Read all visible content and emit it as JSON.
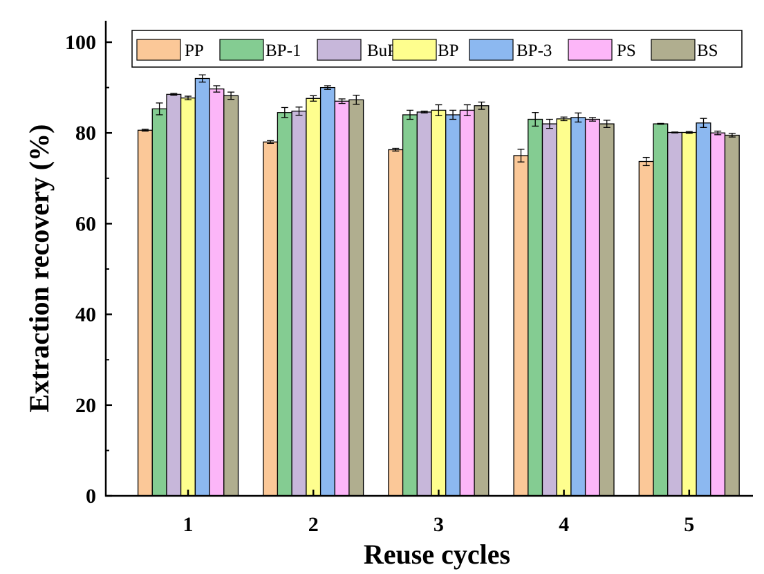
{
  "chart_data": {
    "type": "bar",
    "xlabel": "Reuse cycles",
    "ylabel": "Extraction recovery (%)",
    "ylim": [
      0,
      100
    ],
    "yticks": [
      0,
      20,
      40,
      60,
      80,
      100
    ],
    "categories": [
      "1",
      "2",
      "3",
      "4",
      "5"
    ],
    "grid": false,
    "legend_position": "top",
    "series": [
      {
        "name": "PP",
        "color": "#fbc898",
        "values": [
          80.6,
          78.0,
          76.3,
          75.0,
          73.7
        ],
        "errors": [
          0.2,
          0.3,
          0.3,
          1.4,
          0.9
        ]
      },
      {
        "name": "BP-1",
        "color": "#84cc92",
        "values": [
          85.3,
          84.5,
          84.0,
          83.0,
          82.0
        ],
        "errors": [
          1.3,
          1.1,
          1.0,
          1.5,
          0.1
        ]
      },
      {
        "name": "BuP",
        "color": "#c7b7da",
        "values": [
          88.5,
          84.8,
          84.6,
          82.0,
          80.1
        ],
        "errors": [
          0.2,
          0.9,
          0.2,
          1.0,
          0.1
        ]
      },
      {
        "name": "BP",
        "color": "#fefe8e",
        "values": [
          87.7,
          87.6,
          85.0,
          83.1,
          80.1
        ],
        "errors": [
          0.4,
          0.6,
          1.2,
          0.4,
          0.2
        ]
      },
      {
        "name": "BP-3",
        "color": "#8cb8f0",
        "values": [
          92.0,
          90.0,
          84.0,
          83.4,
          82.2
        ],
        "errors": [
          0.8,
          0.4,
          1.0,
          1.0,
          1.0
        ]
      },
      {
        "name": "PS",
        "color": "#fcb6f8",
        "values": [
          89.7,
          87.0,
          85.0,
          83.0,
          80.0
        ],
        "errors": [
          0.7,
          0.5,
          1.2,
          0.4,
          0.4
        ]
      },
      {
        "name": "BS",
        "color": "#b0ae8f",
        "values": [
          88.2,
          87.3,
          86.0,
          82.0,
          79.5
        ],
        "errors": [
          0.8,
          1.0,
          0.8,
          0.8,
          0.4
        ]
      }
    ]
  }
}
